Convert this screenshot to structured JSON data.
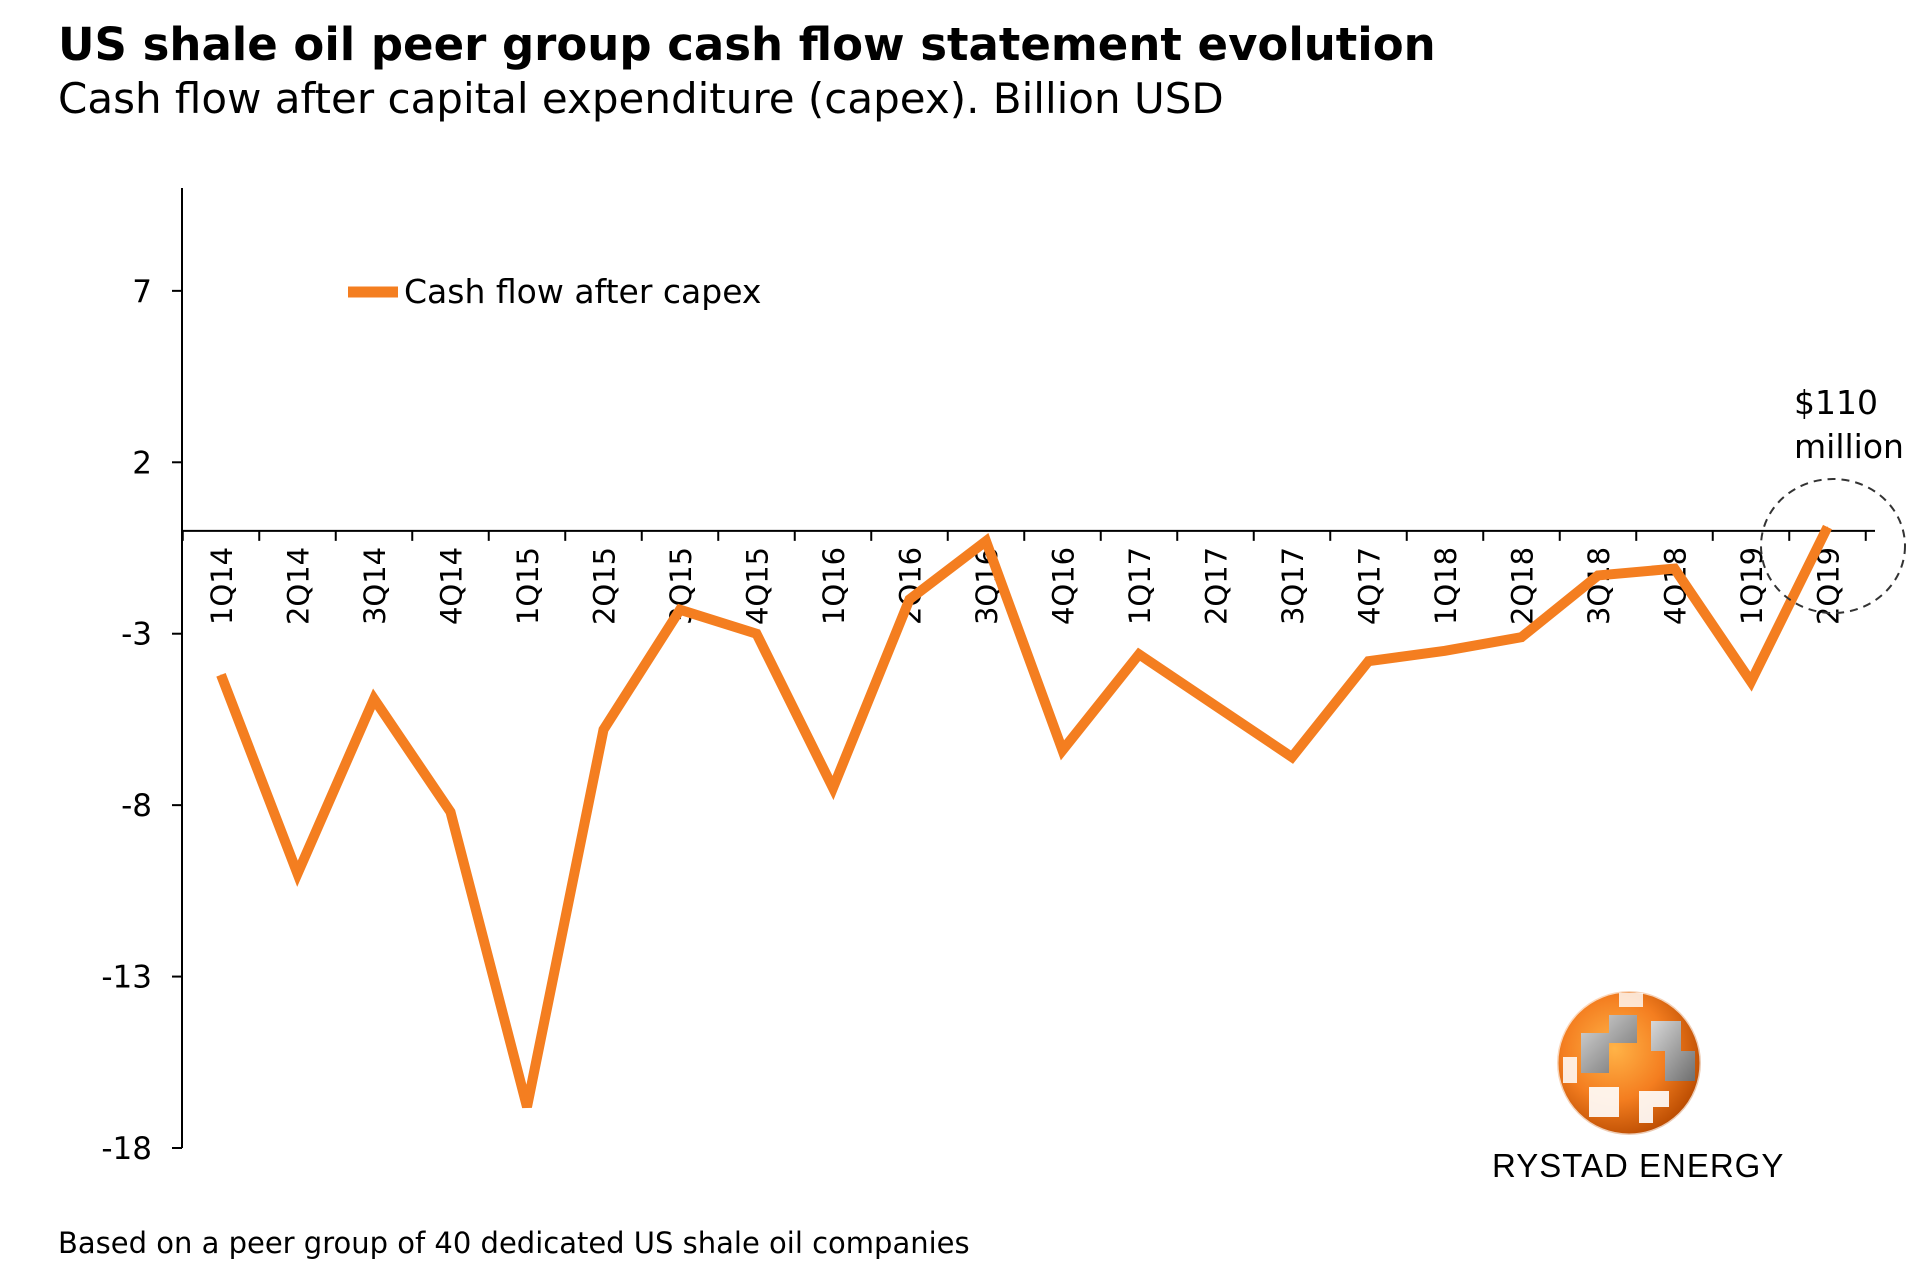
{
  "chart_data": {
    "type": "line",
    "title": "US shale oil peer group cash flow statement evolution",
    "subtitle": "Cash flow after capital expenditure (capex). Billion USD",
    "categories": [
      "1Q14",
      "2Q14",
      "3Q14",
      "4Q14",
      "1Q15",
      "2Q15",
      "3Q15",
      "4Q15",
      "1Q16",
      "2Q16",
      "3Q16",
      "4Q16",
      "1Q17",
      "2Q17",
      "3Q17",
      "4Q17",
      "1Q18",
      "2Q18",
      "3Q18",
      "4Q18",
      "1Q19",
      "2Q19"
    ],
    "series": [
      {
        "name": "Cash flow after capex",
        "color": "#F47E20",
        "values": [
          -4.2,
          -10.0,
          -4.9,
          -8.2,
          -16.8,
          -5.8,
          -2.3,
          -3.0,
          -7.5,
          -2.0,
          -0.3,
          -6.4,
          -3.6,
          -5.1,
          -6.6,
          -3.8,
          -3.5,
          -3.1,
          -1.3,
          -1.1,
          -4.4,
          0.11
        ]
      }
    ],
    "yticks": [
      7,
      2,
      -3,
      -8,
      -13,
      -18
    ],
    "ylim": [
      -18,
      10
    ],
    "legend_position": "top-left",
    "annotation": {
      "lines": [
        "$110",
        "million"
      ],
      "category": "2Q19"
    },
    "source_note": "Based on a peer group of 40 dedicated US shale oil companies",
    "brand": "RYSTAD ENERGY"
  }
}
